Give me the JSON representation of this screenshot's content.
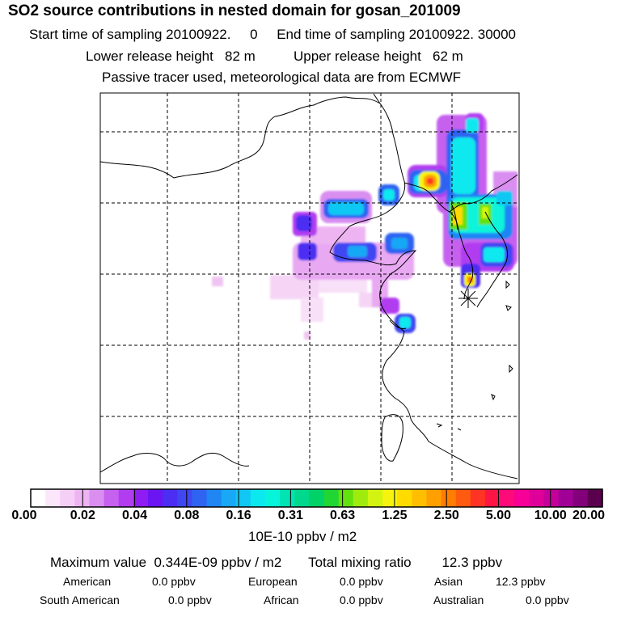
{
  "header": {
    "title": "SO2 source contributions in nested domain for gosan_201009",
    "start_label": "Start time of sampling 20100922.     0",
    "end_label": "End time of sampling 20100922. 30000",
    "lower_label": "Lower release height   82 m",
    "upper_label": "Upper release height   62 m",
    "tracer_note": "Passive tracer used, meteorological data are from ECMWF"
  },
  "colorbar": {
    "ticks": [
      "0.00",
      "0.02",
      "0.04",
      "0.08",
      "0.16",
      "0.31",
      "0.63",
      "1.25",
      "2.50",
      "5.00",
      "10.00",
      "20.00"
    ],
    "unit": "10E-10 ppbv / m2",
    "colors": [
      "#ffffff",
      "#fbe6fb",
      "#f5cff6",
      "#eeb4f2",
      "#d98ef0",
      "#c660ef",
      "#b23cf0",
      "#8f1cf2",
      "#6a15f2",
      "#4b2ef2",
      "#3f46f2",
      "#2f63f2",
      "#1f86f4",
      "#18a8f5",
      "#10c8f3",
      "#0be9ee",
      "#07f4da",
      "#00e3b3",
      "#00d88d",
      "#00d268",
      "#20d633",
      "#63e10f",
      "#9feb0e",
      "#d3f411",
      "#f6f40e",
      "#ffdb00",
      "#ffbf00",
      "#ff9f00",
      "#ff7d00",
      "#ff5b10",
      "#ff3424",
      "#ff1545",
      "#ff0a79",
      "#f70097",
      "#df0099",
      "#c4009b",
      "#a10097",
      "#82007a",
      "#5a004d"
    ]
  },
  "summary": {
    "max_label": "Maximum value  0.344E-09 ppbv / m2",
    "total_label": "Total mixing ratio",
    "total_value": "12.3 ppbv"
  },
  "regions": [
    {
      "name": "American",
      "value": "0.0 ppbv"
    },
    {
      "name": "European",
      "value": "0.0 ppbv"
    },
    {
      "name": "Asian",
      "value": "12.3 ppbv"
    },
    {
      "name": "South American",
      "value": "0.0 ppbv"
    },
    {
      "name": "African",
      "value": "0.0 ppbv"
    },
    {
      "name": "Australian",
      "value": "0.0 ppbv"
    }
  ]
}
